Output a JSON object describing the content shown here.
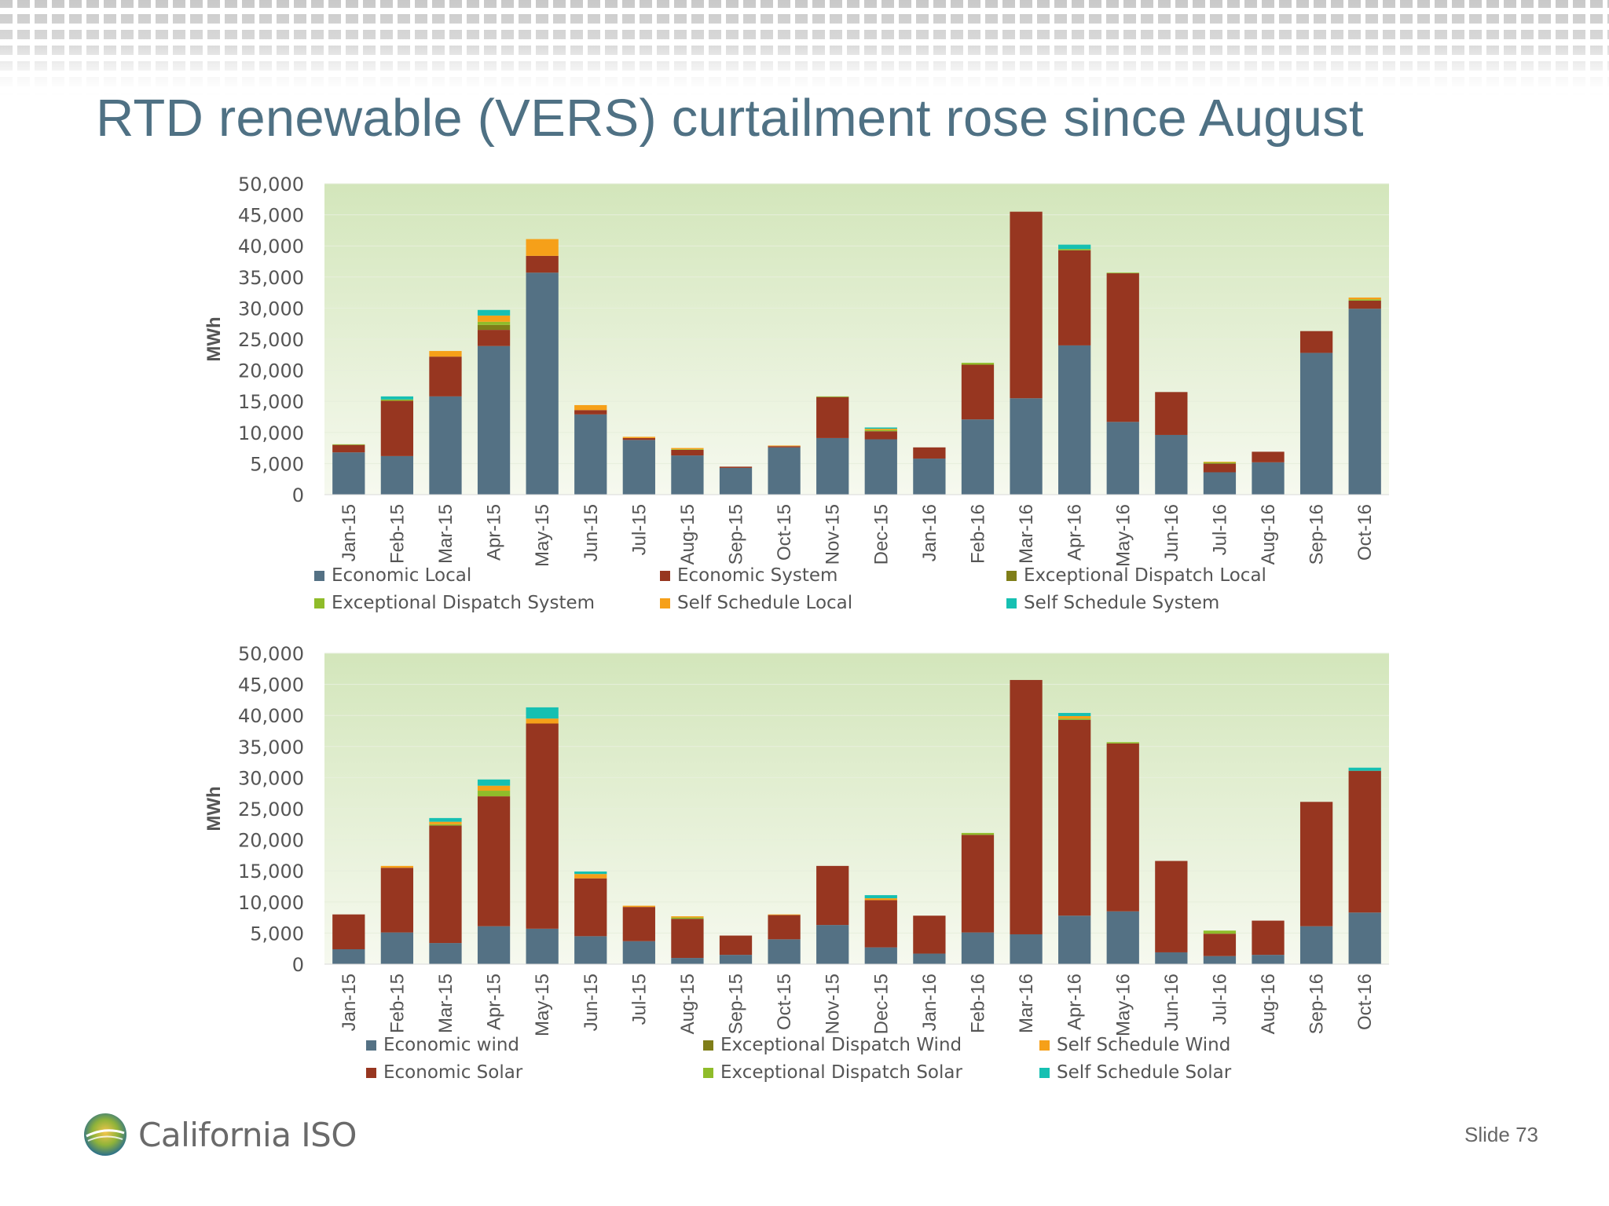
{
  "slide": {
    "title": "RTD renewable (VERS) curtailment rose since August",
    "logo_text": "California ISO",
    "slide_number": "Slide 73"
  },
  "chart_data": [
    {
      "type": "bar",
      "stacked": true,
      "ylabel": "MWh",
      "ylim": [
        0,
        50000
      ],
      "yticks": [
        "0",
        "5,000",
        "10,000",
        "15,000",
        "20,000",
        "25,000",
        "30,000",
        "35,000",
        "40,000",
        "45,000",
        "50,000"
      ],
      "grid": true,
      "legend_position": "bottom",
      "categories": [
        "Jan-15",
        "Feb-15",
        "Mar-15",
        "Apr-15",
        "May-15",
        "Jun-15",
        "Jul-15",
        "Aug-15",
        "Sep-15",
        "Oct-15",
        "Nov-15",
        "Dec-15",
        "Jan-16",
        "Feb-16",
        "Mar-16",
        "Apr-16",
        "May-16",
        "Jun-16",
        "Jul-16",
        "Aug-16",
        "Sep-16",
        "Oct-16"
      ],
      "series": [
        {
          "name": "Economic Local",
          "color": "#547184",
          "values": [
            6800,
            6200,
            15800,
            23900,
            35700,
            12900,
            8800,
            6300,
            4300,
            7600,
            9100,
            8900,
            5800,
            12100,
            15500,
            24000,
            11700,
            9600,
            3600,
            5200,
            22800,
            29900
          ]
        },
        {
          "name": "Economic System",
          "color": "#973620",
          "values": [
            1200,
            8900,
            6400,
            2600,
            2700,
            700,
            300,
            900,
            200,
            200,
            6600,
            1300,
            1800,
            8800,
            30000,
            15300,
            23900,
            6900,
            1400,
            1700,
            3500,
            1300
          ]
        },
        {
          "name": "Exceptional Dispatch Local",
          "color": "#7f7e19",
          "values": [
            0,
            0,
            0,
            800,
            0,
            0,
            0,
            0,
            0,
            0,
            0,
            0,
            0,
            0,
            0,
            0,
            0,
            0,
            0,
            0,
            0,
            0
          ]
        },
        {
          "name": "Exceptional Dispatch System",
          "color": "#8fbc2a",
          "values": [
            100,
            200,
            0,
            500,
            0,
            0,
            0,
            100,
            0,
            0,
            100,
            200,
            0,
            300,
            0,
            200,
            100,
            0,
            200,
            0,
            0,
            200
          ]
        },
        {
          "name": "Self Schedule Local",
          "color": "#f6a019",
          "values": [
            0,
            0,
            900,
            1000,
            2700,
            800,
            200,
            200,
            0,
            100,
            0,
            200,
            0,
            0,
            0,
            0,
            0,
            0,
            100,
            0,
            0,
            300
          ]
        },
        {
          "name": "Self Schedule System",
          "color": "#16c0b2",
          "values": [
            0,
            500,
            0,
            900,
            0,
            0,
            0,
            0,
            0,
            0,
            0,
            200,
            0,
            0,
            0,
            700,
            0,
            0,
            0,
            0,
            0,
            0
          ]
        }
      ]
    },
    {
      "type": "bar",
      "stacked": true,
      "ylabel": "MWh",
      "ylim": [
        0,
        50000
      ],
      "yticks": [
        "0",
        "5,000",
        "10,000",
        "15,000",
        "20,000",
        "25,000",
        "30,000",
        "35,000",
        "40,000",
        "45,000",
        "50,000"
      ],
      "grid": true,
      "legend_position": "bottom",
      "categories": [
        "Jan-15",
        "Feb-15",
        "Mar-15",
        "Apr-15",
        "May-15",
        "Jun-15",
        "Jul-15",
        "Aug-15",
        "Sep-15",
        "Oct-15",
        "Nov-15",
        "Dec-15",
        "Jan-16",
        "Feb-16",
        "Mar-16",
        "Apr-16",
        "May-16",
        "Jun-16",
        "Jul-16",
        "Aug-16",
        "Sep-16",
        "Oct-16"
      ],
      "series": [
        {
          "name": "Economic wind",
          "color": "#547184",
          "values": [
            2400,
            5100,
            3400,
            6100,
            5700,
            4500,
            3700,
            1000,
            1500,
            4000,
            6300,
            2700,
            1700,
            5100,
            4800,
            7800,
            8500,
            1900,
            1300,
            1500,
            6100,
            8300
          ]
        },
        {
          "name": "Economic Solar",
          "color": "#973620",
          "values": [
            5600,
            10400,
            18900,
            20900,
            33000,
            9300,
            5500,
            6300,
            3100,
            3900,
            9500,
            7600,
            6100,
            15700,
            40900,
            31500,
            27000,
            14700,
            3600,
            5500,
            20000,
            22800
          ]
        },
        {
          "name": "Exceptional Dispatch Wind",
          "color": "#7f7e19",
          "values": [
            0,
            0,
            0,
            0,
            0,
            0,
            0,
            0,
            0,
            0,
            0,
            0,
            0,
            0,
            0,
            0,
            0,
            0,
            0,
            0,
            0,
            0
          ]
        },
        {
          "name": "Exceptional Dispatch Solar",
          "color": "#8fbc2a",
          "values": [
            0,
            0,
            200,
            900,
            0,
            0,
            0,
            200,
            0,
            0,
            0,
            0,
            0,
            300,
            0,
            200,
            200,
            0,
            500,
            0,
            0,
            0
          ]
        },
        {
          "name": "Self Schedule Wind",
          "color": "#f6a019",
          "values": [
            0,
            300,
            400,
            800,
            800,
            700,
            200,
            200,
            0,
            100,
            0,
            300,
            0,
            0,
            0,
            400,
            0,
            0,
            0,
            0,
            0,
            0
          ]
        },
        {
          "name": "Self Schedule Solar",
          "color": "#16c0b2",
          "values": [
            0,
            0,
            600,
            1000,
            1800,
            400,
            0,
            0,
            0,
            0,
            0,
            500,
            0,
            0,
            0,
            500,
            0,
            0,
            0,
            0,
            0,
            500
          ]
        }
      ]
    }
  ],
  "legends": [
    {
      "rows": [
        [
          "Economic Local",
          "Economic System",
          "Exceptional Dispatch Local"
        ],
        [
          "Exceptional Dispatch System",
          "Self Schedule Local",
          "Self Schedule System"
        ]
      ]
    },
    {
      "rows": [
        [
          "Economic wind",
          "Exceptional Dispatch Wind",
          "Self Schedule Wind"
        ],
        [
          "Economic Solar",
          "Exceptional Dispatch Solar",
          "Self Schedule Solar"
        ]
      ]
    }
  ]
}
